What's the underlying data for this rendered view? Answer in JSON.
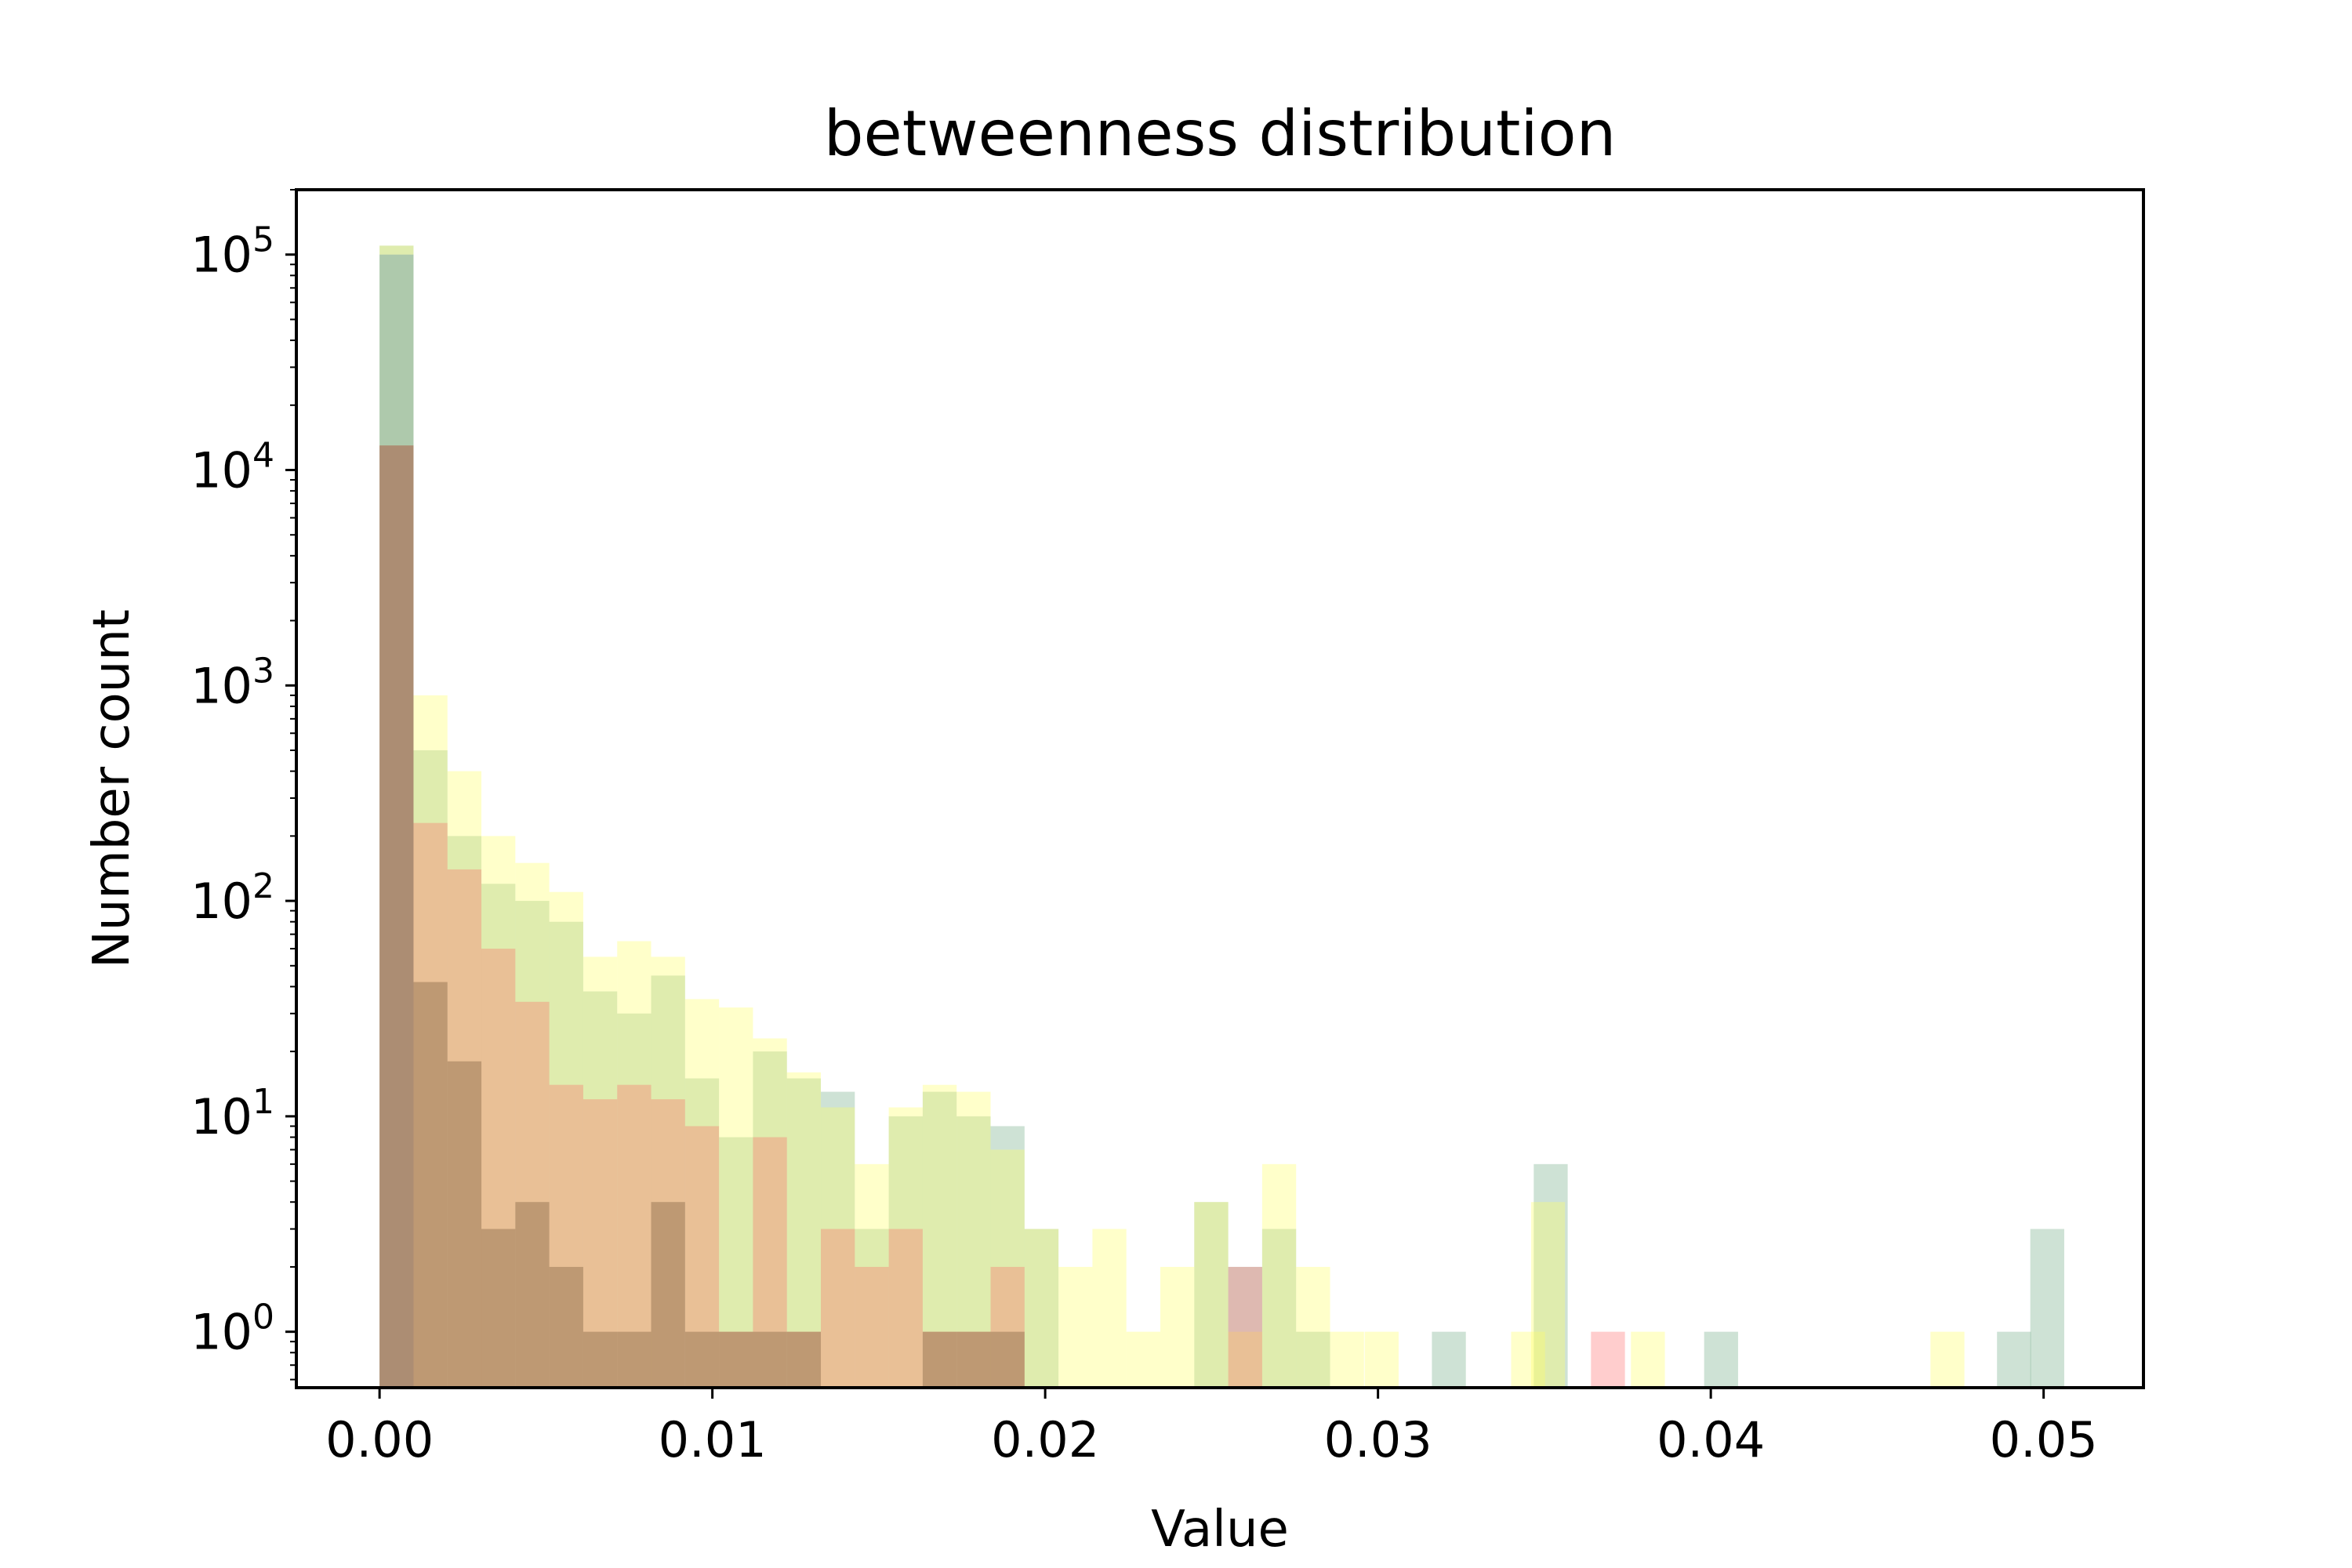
{
  "chart_data": {
    "type": "bar",
    "title": "betweenness distribution",
    "xlabel": "Value",
    "ylabel": "Number count",
    "xlim": [
      -0.0025,
      0.053
    ],
    "ylim": [
      0.55,
      200000
    ],
    "yscale": "log",
    "grid": false,
    "legend": "none",
    "x_ticks": [
      {
        "value": 0.0,
        "label": "0.00"
      },
      {
        "value": 0.01,
        "label": "0.01"
      },
      {
        "value": 0.02,
        "label": "0.02"
      },
      {
        "value": 0.03,
        "label": "0.03"
      },
      {
        "value": 0.04,
        "label": "0.04"
      },
      {
        "value": 0.05,
        "label": "0.05"
      }
    ],
    "y_ticks": [
      {
        "value": 1,
        "base": "10",
        "exp": "0"
      },
      {
        "value": 10,
        "base": "10",
        "exp": "1"
      },
      {
        "value": 100,
        "base": "10",
        "exp": "2"
      },
      {
        "value": 1000,
        "base": "10",
        "exp": "3"
      },
      {
        "value": 10000,
        "base": "10",
        "exp": "4"
      },
      {
        "value": 100000,
        "base": "10",
        "exp": "5"
      }
    ],
    "series": [
      {
        "color": "#1f7a3f",
        "opacity": 0.22,
        "bin_width": 0.00102,
        "bins": [
          [
            0.0,
            110000
          ],
          [
            0.00102,
            500
          ],
          [
            0.00204,
            200
          ],
          [
            0.00306,
            120
          ],
          [
            0.00408,
            100
          ],
          [
            0.0051,
            80
          ],
          [
            0.00612,
            38
          ],
          [
            0.00714,
            30
          ],
          [
            0.00816,
            45
          ],
          [
            0.00918,
            15
          ],
          [
            0.0102,
            8
          ],
          [
            0.01122,
            20
          ],
          [
            0.01224,
            15
          ],
          [
            0.01326,
            13
          ],
          [
            0.01428,
            3
          ],
          [
            0.0153,
            10
          ],
          [
            0.01632,
            13
          ],
          [
            0.01734,
            10
          ],
          [
            0.01836,
            9
          ],
          [
            0.01938,
            3
          ],
          [
            0.02448,
            4
          ],
          [
            0.0255,
            2
          ],
          [
            0.02652,
            3
          ],
          [
            0.02754,
            1
          ],
          [
            0.03162,
            1
          ],
          [
            0.03468,
            6
          ],
          [
            0.0398,
            1
          ],
          [
            0.0486,
            1
          ],
          [
            0.0496,
            3
          ]
        ]
      },
      {
        "color": "#ffff66",
        "opacity": 0.35,
        "bin_width": 0.00102,
        "bins": [
          [
            0.0,
            110000
          ],
          [
            0.00102,
            900
          ],
          [
            0.00204,
            400
          ],
          [
            0.00306,
            200
          ],
          [
            0.00408,
            150
          ],
          [
            0.0051,
            110
          ],
          [
            0.00612,
            55
          ],
          [
            0.00714,
            65
          ],
          [
            0.00816,
            55
          ],
          [
            0.00918,
            35
          ],
          [
            0.0102,
            32
          ],
          [
            0.01122,
            23
          ],
          [
            0.01224,
            16
          ],
          [
            0.01326,
            11
          ],
          [
            0.01428,
            6
          ],
          [
            0.0153,
            11
          ],
          [
            0.01632,
            14
          ],
          [
            0.01734,
            13
          ],
          [
            0.01836,
            7
          ],
          [
            0.01938,
            3
          ],
          [
            0.0204,
            2
          ],
          [
            0.02142,
            3
          ],
          [
            0.02244,
            1
          ],
          [
            0.02346,
            2
          ],
          [
            0.02448,
            4
          ],
          [
            0.0255,
            1
          ],
          [
            0.02652,
            6
          ],
          [
            0.02754,
            2
          ],
          [
            0.02856,
            1
          ],
          [
            0.0296,
            1
          ],
          [
            0.034,
            1
          ],
          [
            0.0346,
            4
          ],
          [
            0.0376,
            1
          ],
          [
            0.0466,
            1
          ]
        ]
      },
      {
        "color": "#2f6fa8",
        "opacity": 0.28,
        "bin_width": 0.00102,
        "bins": [
          [
            0.0,
            100000
          ]
        ]
      },
      {
        "color": "#ff6666",
        "opacity": 0.33,
        "bin_width": 0.00102,
        "bins": [
          [
            0.0,
            13000
          ],
          [
            0.00102,
            230
          ],
          [
            0.00204,
            140
          ],
          [
            0.00306,
            60
          ],
          [
            0.00408,
            34
          ],
          [
            0.0051,
            14
          ],
          [
            0.00612,
            12
          ],
          [
            0.00714,
            14
          ],
          [
            0.00816,
            12
          ],
          [
            0.00918,
            9
          ],
          [
            0.0102,
            1
          ],
          [
            0.01122,
            8
          ],
          [
            0.01224,
            1
          ],
          [
            0.01326,
            3
          ],
          [
            0.01428,
            2
          ],
          [
            0.0153,
            3
          ],
          [
            0.01632,
            1
          ],
          [
            0.01734,
            1
          ],
          [
            0.01836,
            2
          ],
          [
            0.0255,
            2
          ],
          [
            0.0364,
            1
          ]
        ]
      },
      {
        "color": "#8a6b4a",
        "opacity": 0.45,
        "bin_width": 0.00102,
        "bins": [
          [
            0.0,
            13000
          ],
          [
            0.00102,
            42
          ],
          [
            0.00204,
            18
          ],
          [
            0.00306,
            3
          ],
          [
            0.00408,
            4
          ],
          [
            0.0051,
            2
          ],
          [
            0.00612,
            1
          ],
          [
            0.00714,
            1
          ],
          [
            0.00816,
            4
          ],
          [
            0.00918,
            1
          ],
          [
            0.0102,
            1
          ],
          [
            0.01122,
            1
          ],
          [
            0.01224,
            1
          ],
          [
            0.01632,
            1
          ],
          [
            0.01734,
            1
          ],
          [
            0.01836,
            1
          ]
        ]
      }
    ]
  }
}
